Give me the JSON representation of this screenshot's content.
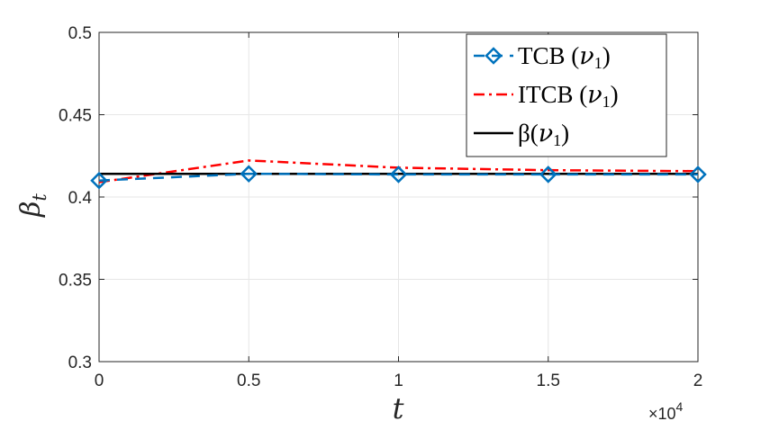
{
  "chart_data": {
    "type": "line",
    "xlabel": "t",
    "ylabel": "β_t",
    "ylabel_parts": {
      "base": "β",
      "sub": "t"
    },
    "x_multiplier": "×10",
    "x_multiplier_exp": "4",
    "xlim": [
      0,
      2
    ],
    "ylim": [
      0.3,
      0.5
    ],
    "xticks": [
      0,
      0.5,
      1,
      1.5,
      2
    ],
    "xtick_labels": [
      "0",
      "0.5",
      "1",
      "1.5",
      "2"
    ],
    "yticks": [
      0.3,
      0.35,
      0.4,
      0.45,
      0.5
    ],
    "ytick_labels": [
      "0.3",
      "0.35",
      "0.4",
      "0.45",
      "0.5"
    ],
    "grid": true,
    "legend_position": "top-right",
    "series": [
      {
        "name": "TCB (ν1)",
        "legend_main": "TCB (",
        "legend_sym": "ν",
        "legend_sub": "1",
        "legend_end": ")",
        "color": "#0072BD",
        "style": "dashed",
        "marker": "diamond",
        "x": [
          0,
          0.5,
          1,
          1.5,
          2
        ],
        "y": [
          0.41,
          0.4141,
          0.4137,
          0.4137,
          0.4137
        ]
      },
      {
        "name": "ITCB (ν1)",
        "legend_main": "ITCB (",
        "legend_sym": "ν",
        "legend_sub": "1",
        "legend_end": ")",
        "color": "#FF0000",
        "style": "dashdot",
        "marker": "none",
        "x": [
          0,
          0.5,
          1,
          1.5,
          2
        ],
        "y": [
          0.409,
          0.4222,
          0.4178,
          0.4163,
          0.4157
        ]
      },
      {
        "name": "β(ν1)",
        "legend_main": "β(",
        "legend_sym": "ν",
        "legend_sub": "1",
        "legend_end": ")",
        "color": "#000000",
        "style": "solid",
        "marker": "none",
        "x": [
          0,
          2
        ],
        "y": [
          0.4141,
          0.4141
        ]
      }
    ]
  }
}
